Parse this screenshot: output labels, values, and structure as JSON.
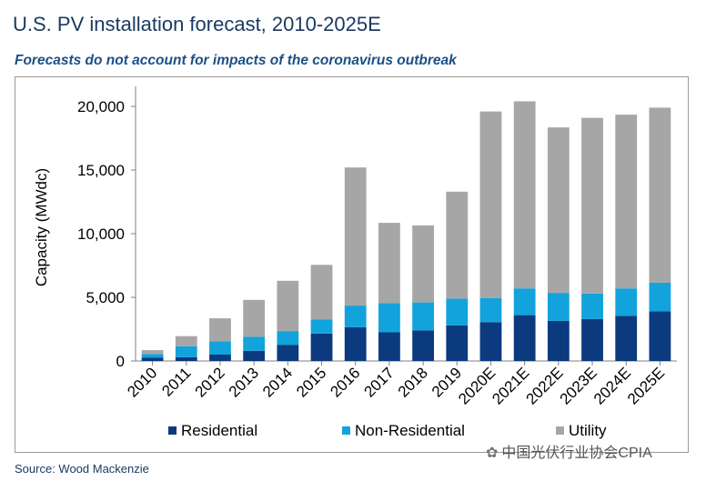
{
  "title": "U.S. PV installation forecast, 2010-2025E",
  "subtitle": "Forecasts do not account for impacts of the coronavirus outbreak",
  "source": "Source: Wood Mackenzie",
  "watermark": "中国光伏行业协会CPIA",
  "colors": {
    "residential": "#0b3a7e",
    "non_residential": "#12a3dc",
    "utility": "#a6a6a6"
  },
  "chart_data": {
    "type": "bar",
    "stacked": true,
    "categories": [
      "2010",
      "2011",
      "2012",
      "2013",
      "2014",
      "2015",
      "2016",
      "2017",
      "2018",
      "2019",
      "2020E",
      "2021E",
      "2022E",
      "2023E",
      "2024E",
      "2025E"
    ],
    "series": [
      {
        "name": "Residential",
        "values": [
          250,
          300,
          500,
          800,
          1250,
          2150,
          2650,
          2250,
          2400,
          2800,
          3050,
          3600,
          3150,
          3300,
          3550,
          3900
        ]
      },
      {
        "name": "Non-Residential",
        "values": [
          300,
          850,
          1050,
          1100,
          1100,
          1100,
          1700,
          2300,
          2200,
          2100,
          1900,
          2100,
          2200,
          2000,
          2150,
          2250
        ]
      },
      {
        "name": "Utility",
        "values": [
          300,
          800,
          1800,
          2900,
          3950,
          4300,
          10850,
          6300,
          6050,
          8400,
          14650,
          14700,
          13000,
          13800,
          13650,
          13750
        ]
      }
    ],
    "ylabel": "Capacity (MWdc)",
    "ylim": [
      0,
      21000
    ],
    "yticks": [
      "0",
      "5,000",
      "10,000",
      "15,000",
      "20,000"
    ],
    "ytick_values": [
      0,
      5000,
      10000,
      15000,
      20000
    ],
    "grid": false,
    "legend": "bottom"
  }
}
